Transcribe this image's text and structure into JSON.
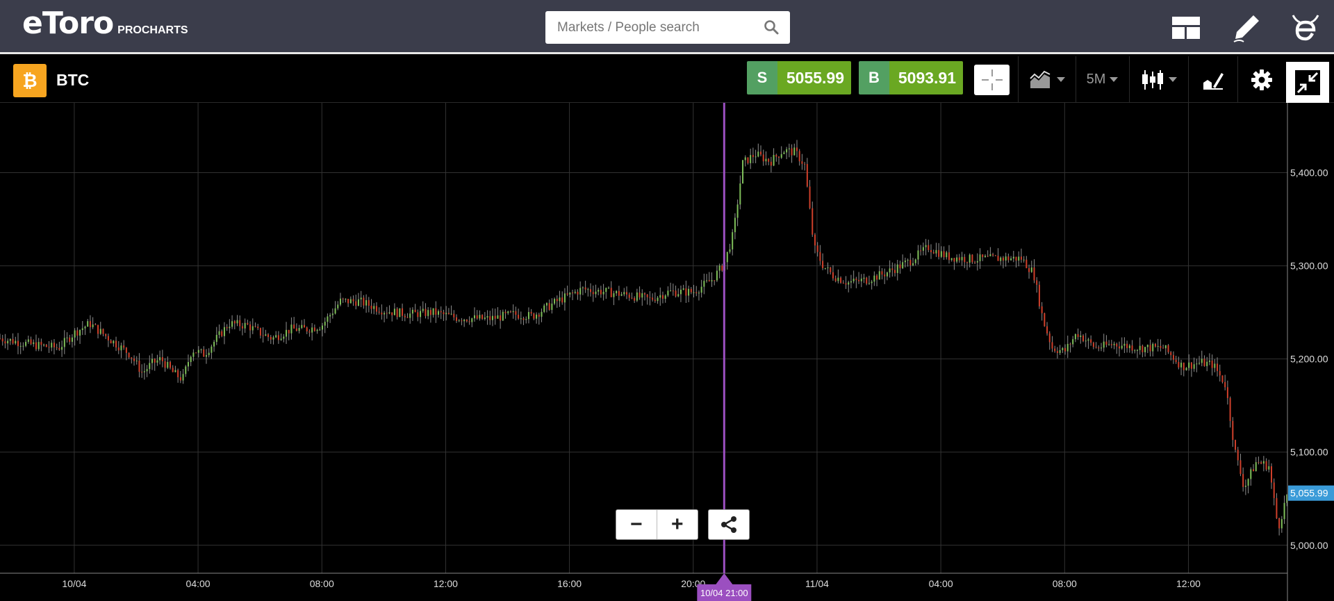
{
  "header": {
    "logo_text": "eToro",
    "logo_sub": "PROCHARTS",
    "search_placeholder": "Markets / People search",
    "icons": [
      "search-icon",
      "layout-icon",
      "pencil-icon",
      "etoro-e-icon"
    ]
  },
  "instrument": {
    "badge": "₿",
    "symbol": "BTC",
    "sell_label": "S",
    "sell_price": "5055.99",
    "buy_label": "B",
    "buy_price": "5093.91",
    "period": "5M",
    "colors": {
      "badge": "#f7a520",
      "sell_tag": "#53a062",
      "price": "#6aa822"
    }
  },
  "toolbar": {
    "icons": [
      "crosshair-icon",
      "indicators-icon",
      "candles-icon",
      "drawing-icon",
      "settings-icon",
      "collapse-icon"
    ]
  },
  "chart_data": {
    "type": "candlestick",
    "symbol": "BTC",
    "interval": "5M",
    "ylim": [
      4970,
      5475
    ],
    "y_ticks": [
      "5,400.00",
      "5,300.00",
      "5,200.00",
      "5,100.00",
      "5,000.00"
    ],
    "y_tick_values": [
      5400,
      5300,
      5200,
      5100,
      5000
    ],
    "x_ticks": [
      "10/04",
      "04:00",
      "08:00",
      "12:00",
      "16:00",
      "20:00",
      "11/04",
      "04:00",
      "08:00",
      "12:00"
    ],
    "x_tick_hours": [
      0,
      4,
      8,
      12,
      16,
      20,
      24,
      28,
      32,
      36
    ],
    "x_range_hours": [
      -2.4,
      39.2
    ],
    "current_price": "5,055.99",
    "current_price_value": 5055.99,
    "marker_label": "10/04 21:00",
    "marker_hour": 21,
    "grid": true,
    "price_path": [
      [
        -2.4,
        5222
      ],
      [
        -1.3,
        5215
      ],
      [
        -0.5,
        5212
      ],
      [
        0,
        5228
      ],
      [
        0.5,
        5238
      ],
      [
        1.2,
        5220
      ],
      [
        1.8,
        5205
      ],
      [
        2.2,
        5185
      ],
      [
        2.5,
        5195
      ],
      [
        2.8,
        5200
      ],
      [
        3.2,
        5185
      ],
      [
        3.5,
        5178
      ],
      [
        3.8,
        5210
      ],
      [
        4.2,
        5205
      ],
      [
        4.6,
        5222
      ],
      [
        5.0,
        5238
      ],
      [
        5.6,
        5236
      ],
      [
        6.0,
        5228
      ],
      [
        6.4,
        5222
      ],
      [
        7.0,
        5232
      ],
      [
        7.5,
        5232
      ],
      [
        8.0,
        5236
      ],
      [
        8.6,
        5262
      ],
      [
        9.2,
        5262
      ],
      [
        10.0,
        5252
      ],
      [
        10.8,
        5248
      ],
      [
        11.6,
        5250
      ],
      [
        12.4,
        5244
      ],
      [
        13.4,
        5243
      ],
      [
        14.2,
        5248
      ],
      [
        14.8,
        5246
      ],
      [
        15.6,
        5262
      ],
      [
        16.4,
        5275
      ],
      [
        17.2,
        5272
      ],
      [
        18.0,
        5268
      ],
      [
        18.6,
        5264
      ],
      [
        19.2,
        5272
      ],
      [
        20.0,
        5272
      ],
      [
        20.6,
        5285
      ],
      [
        21.0,
        5302
      ],
      [
        21.3,
        5335
      ],
      [
        21.6,
        5410
      ],
      [
        22.0,
        5420
      ],
      [
        22.5,
        5412
      ],
      [
        22.9,
        5424
      ],
      [
        23.3,
        5422
      ],
      [
        23.6,
        5408
      ],
      [
        23.9,
        5320
      ],
      [
        24.2,
        5300
      ],
      [
        24.5,
        5290
      ],
      [
        25.0,
        5282
      ],
      [
        25.6,
        5285
      ],
      [
        26.2,
        5292
      ],
      [
        27.0,
        5305
      ],
      [
        27.6,
        5320
      ],
      [
        28.2,
        5310
      ],
      [
        29.0,
        5307
      ],
      [
        29.8,
        5308
      ],
      [
        30.6,
        5308
      ],
      [
        31.0,
        5292
      ],
      [
        31.3,
        5242
      ],
      [
        31.6,
        5212
      ],
      [
        32.0,
        5208
      ],
      [
        32.4,
        5228
      ],
      [
        33.0,
        5212
      ],
      [
        33.6,
        5216
      ],
      [
        34.4,
        5212
      ],
      [
        35.2,
        5212
      ],
      [
        35.8,
        5192
      ],
      [
        36.4,
        5196
      ],
      [
        36.8,
        5194
      ],
      [
        37.2,
        5172
      ],
      [
        37.5,
        5102
      ],
      [
        37.8,
        5062
      ],
      [
        38.2,
        5090
      ],
      [
        38.6,
        5085
      ],
      [
        38.9,
        5018
      ],
      [
        39.2,
        5056
      ]
    ]
  }
}
